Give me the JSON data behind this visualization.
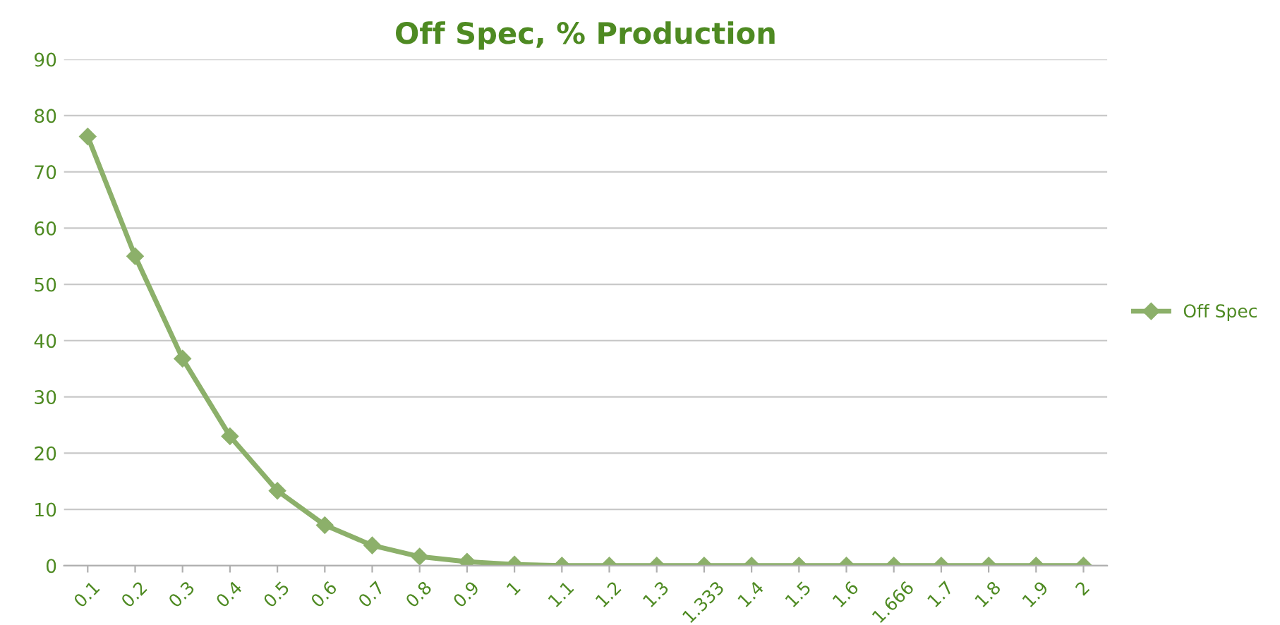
{
  "chart_data": {
    "type": "line",
    "title": "Off Spec, % Production",
    "categories": [
      "0.1",
      "0.2",
      "0.3",
      "0.4",
      "0.5",
      "0.6",
      "0.7",
      "0.8",
      "0.9",
      "1",
      "1.1",
      "1.2",
      "1.3",
      "1.333",
      "1.4",
      "1.5",
      "1.6",
      "1.666",
      "1.7",
      "1.8",
      "1.9",
      "2"
    ],
    "series": [
      {
        "name": "Off Spec",
        "color": "#8cb06a",
        "values": [
          76.3,
          55,
          36.8,
          23,
          13.3,
          7.2,
          3.6,
          1.6,
          0.7,
          0.2,
          0,
          0,
          0,
          0,
          0,
          0,
          0,
          0,
          0,
          0,
          0,
          0
        ]
      }
    ],
    "ylim": [
      0,
      90
    ],
    "yticks": [
      0,
      10,
      20,
      30,
      40,
      50,
      60,
      70,
      80,
      90
    ],
    "grid": "y",
    "legend": "right",
    "marker": "diamond",
    "line_style": "solid"
  }
}
